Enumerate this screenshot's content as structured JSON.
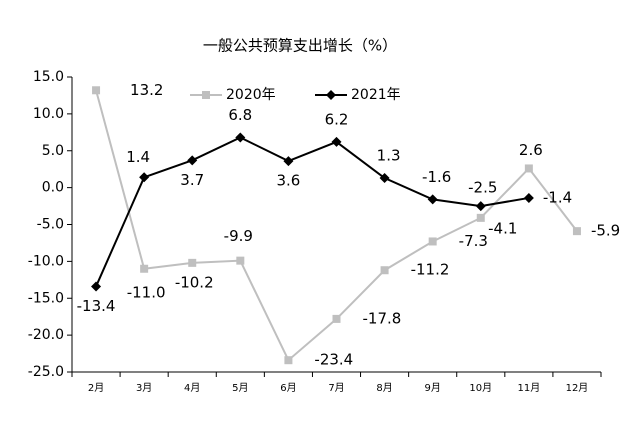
{
  "chart_data": {
    "type": "line",
    "title": "一般公共预算支出增长（%）",
    "categories": [
      "2月",
      "3月",
      "4月",
      "5月",
      "6月",
      "7月",
      "8月",
      "9月",
      "10月",
      "11月",
      "12月"
    ],
    "series": [
      {
        "name": "2020年",
        "color": "#bfbfbf",
        "marker": "square",
        "values": [
          13.2,
          -11.0,
          -10.2,
          -9.9,
          -23.4,
          -17.8,
          -11.2,
          -7.3,
          -4.1,
          2.6,
          -5.9
        ],
        "value_labels": [
          "13.2",
          "-11.0",
          "-10.2",
          "-9.9",
          "-23.4",
          "-17.8",
          "-11.2",
          "-7.3",
          "-4.1",
          "2.6",
          "-5.9"
        ]
      },
      {
        "name": "2021年",
        "color": "#000000",
        "marker": "diamond",
        "values": [
          -13.4,
          1.4,
          3.7,
          6.8,
          3.6,
          6.2,
          1.3,
          -1.6,
          -2.5,
          -1.4,
          null
        ],
        "value_labels": [
          "-13.4",
          "1.4",
          "3.7",
          "6.8",
          "3.6",
          "6.2",
          "1.3",
          "-1.6",
          "-2.5",
          "-1.4",
          null
        ]
      }
    ],
    "ylim": [
      -25,
      15
    ],
    "yticks": [
      {
        "value": -25,
        "label": "-25.0"
      },
      {
        "value": -20,
        "label": "-20.0"
      },
      {
        "value": -15,
        "label": "-15.0"
      },
      {
        "value": -10,
        "label": "-10.0"
      },
      {
        "value": -5,
        "label": "-5.0"
      },
      {
        "value": 0,
        "label": "0.0"
      },
      {
        "value": 5,
        "label": "5.0"
      },
      {
        "value": 10,
        "label": "10.0"
      },
      {
        "value": 15,
        "label": "15.0"
      }
    ],
    "legend": "top"
  }
}
